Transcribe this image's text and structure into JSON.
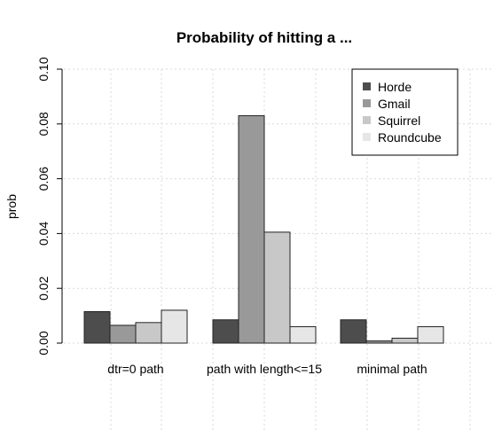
{
  "chart_data": {
    "type": "bar",
    "title": "Probability of hitting a ...",
    "xlabel": "",
    "ylabel": "prob",
    "ylim": [
      0,
      0.1
    ],
    "yticks": [
      "0.00",
      "0.02",
      "0.04",
      "0.06",
      "0.08",
      "0.10"
    ],
    "grid": true,
    "legend_position": "top-right",
    "categories": [
      "dtr=0 path",
      "path with length<=15",
      "minimal path"
    ],
    "series": [
      {
        "name": "Horde",
        "color": "#4d4d4d",
        "values": [
          0.0115,
          0.0085,
          0.0085
        ]
      },
      {
        "name": "Gmail",
        "color": "#999999",
        "values": [
          0.0065,
          0.083,
          0.0008
        ]
      },
      {
        "name": "Squirrel",
        "color": "#c8c8c8",
        "values": [
          0.0075,
          0.0405,
          0.0018
        ]
      },
      {
        "name": "Roundcube",
        "color": "#e6e6e6",
        "values": [
          0.012,
          0.006,
          0.006
        ]
      }
    ]
  }
}
